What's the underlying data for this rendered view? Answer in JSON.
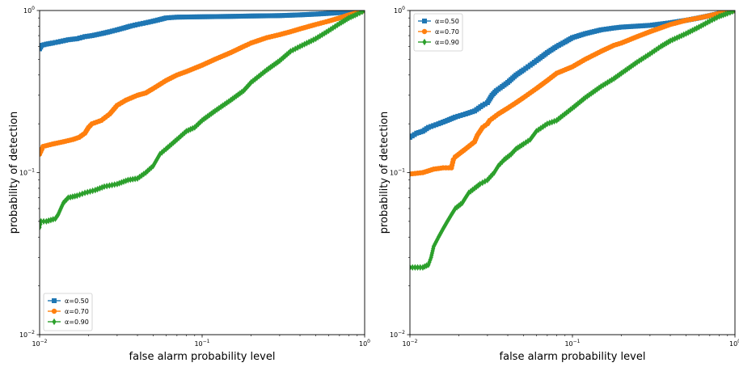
{
  "colors": {
    "blue": "#1f77b4",
    "orange": "#ff7f0e",
    "green": "#2ca02c"
  },
  "chart_data": [
    {
      "type": "line",
      "xscale": "log",
      "yscale": "log",
      "xlim": [
        0.01,
        1
      ],
      "ylim": [
        0.01,
        1
      ],
      "xlabel": "false alarm probability level",
      "ylabel": "probability of detection",
      "x_ticks": [
        0.01,
        0.1,
        1
      ],
      "y_ticks": [
        0.01,
        0.1,
        1
      ],
      "x_tick_labels": [
        [
          "10",
          "−2"
        ],
        [
          "10",
          "−1"
        ],
        [
          "10",
          "0"
        ]
      ],
      "y_tick_labels": [
        [
          "10",
          "−2"
        ],
        [
          "10",
          "−1"
        ],
        [
          "10",
          "0"
        ]
      ],
      "legend_position": "lower-left",
      "series": [
        {
          "name": "α=0.50",
          "marker": "square",
          "color": "#1f77b4",
          "points": [
            [
              0.01,
              0.58
            ],
            [
              0.0103,
              0.61
            ],
            [
              0.011,
              0.62
            ],
            [
              0.012,
              0.63
            ],
            [
              0.013,
              0.64
            ],
            [
              0.015,
              0.66
            ],
            [
              0.017,
              0.67
            ],
            [
              0.019,
              0.69
            ],
            [
              0.021,
              0.7
            ],
            [
              0.024,
              0.72
            ],
            [
              0.027,
              0.74
            ],
            [
              0.03,
              0.76
            ],
            [
              0.033,
              0.78
            ],
            [
              0.036,
              0.8
            ],
            [
              0.04,
              0.82
            ],
            [
              0.045,
              0.84
            ],
            [
              0.05,
              0.86
            ],
            [
              0.055,
              0.88
            ],
            [
              0.06,
              0.9
            ],
            [
              0.07,
              0.91
            ],
            [
              0.1,
              0.915
            ],
            [
              0.15,
              0.92
            ],
            [
              0.2,
              0.925
            ],
            [
              0.3,
              0.93
            ],
            [
              0.4,
              0.94
            ],
            [
              0.5,
              0.95
            ],
            [
              0.6,
              0.96
            ],
            [
              0.7,
              0.97
            ],
            [
              0.8,
              0.98
            ],
            [
              0.9,
              0.99
            ],
            [
              1.0,
              1.0
            ]
          ]
        },
        {
          "name": "α=0.70",
          "marker": "circle",
          "color": "#ff7f0e",
          "points": [
            [
              0.01,
              0.13
            ],
            [
              0.0105,
              0.145
            ],
            [
              0.012,
              0.15
            ],
            [
              0.014,
              0.155
            ],
            [
              0.016,
              0.16
            ],
            [
              0.0175,
              0.165
            ],
            [
              0.019,
              0.175
            ],
            [
              0.02,
              0.19
            ],
            [
              0.021,
              0.2
            ],
            [
              0.024,
              0.21
            ],
            [
              0.027,
              0.23
            ],
            [
              0.03,
              0.26
            ],
            [
              0.034,
              0.28
            ],
            [
              0.04,
              0.3
            ],
            [
              0.045,
              0.31
            ],
            [
              0.05,
              0.33
            ],
            [
              0.06,
              0.37
            ],
            [
              0.07,
              0.4
            ],
            [
              0.08,
              0.42
            ],
            [
              0.1,
              0.46
            ],
            [
              0.12,
              0.5
            ],
            [
              0.15,
              0.55
            ],
            [
              0.18,
              0.6
            ],
            [
              0.2,
              0.63
            ],
            [
              0.25,
              0.68
            ],
            [
              0.3,
              0.71
            ],
            [
              0.35,
              0.74
            ],
            [
              0.4,
              0.77
            ],
            [
              0.5,
              0.82
            ],
            [
              0.6,
              0.86
            ],
            [
              0.7,
              0.9
            ],
            [
              0.8,
              0.94
            ],
            [
              0.9,
              0.97
            ],
            [
              1.0,
              1.0
            ]
          ]
        },
        {
          "name": "α=0.90",
          "marker": "diamond",
          "color": "#2ca02c",
          "points": [
            [
              0.01,
              0.046
            ],
            [
              0.0102,
              0.05
            ],
            [
              0.011,
              0.05
            ],
            [
              0.0125,
              0.052
            ],
            [
              0.013,
              0.055
            ],
            [
              0.0135,
              0.06
            ],
            [
              0.014,
              0.065
            ],
            [
              0.015,
              0.07
            ],
            [
              0.017,
              0.072
            ],
            [
              0.019,
              0.075
            ],
            [
              0.022,
              0.078
            ],
            [
              0.025,
              0.082
            ],
            [
              0.03,
              0.085
            ],
            [
              0.035,
              0.09
            ],
            [
              0.04,
              0.092
            ],
            [
              0.045,
              0.1
            ],
            [
              0.05,
              0.11
            ],
            [
              0.055,
              0.13
            ],
            [
              0.06,
              0.14
            ],
            [
              0.07,
              0.16
            ],
            [
              0.08,
              0.18
            ],
            [
              0.09,
              0.19
            ],
            [
              0.1,
              0.21
            ],
            [
              0.12,
              0.24
            ],
            [
              0.15,
              0.28
            ],
            [
              0.18,
              0.32
            ],
            [
              0.2,
              0.36
            ],
            [
              0.25,
              0.43
            ],
            [
              0.3,
              0.49
            ],
            [
              0.35,
              0.56
            ],
            [
              0.4,
              0.6
            ],
            [
              0.5,
              0.67
            ],
            [
              0.6,
              0.75
            ],
            [
              0.7,
              0.83
            ],
            [
              0.8,
              0.9
            ],
            [
              0.9,
              0.95
            ],
            [
              1.0,
              1.0
            ]
          ]
        }
      ]
    },
    {
      "type": "line",
      "xscale": "log",
      "yscale": "log",
      "xlim": [
        0.01,
        1
      ],
      "ylim": [
        0.01,
        1
      ],
      "xlabel": "false alarm probability level",
      "ylabel": "probability of detection",
      "x_ticks": [
        0.01,
        0.1,
        1
      ],
      "y_ticks": [
        0.01,
        0.1,
        1
      ],
      "x_tick_labels": [
        [
          "10",
          "−2"
        ],
        [
          "10",
          "−1"
        ],
        [
          "10",
          "0"
        ]
      ],
      "y_tick_labels": [
        [
          "10",
          "−2"
        ],
        [
          "10",
          "−1"
        ],
        [
          "10",
          "0"
        ]
      ],
      "legend_position": "upper-left",
      "series": [
        {
          "name": "α=0.50",
          "marker": "square",
          "color": "#1f77b4",
          "points": [
            [
              0.01,
              0.165
            ],
            [
              0.011,
              0.175
            ],
            [
              0.012,
              0.18
            ],
            [
              0.013,
              0.19
            ],
            [
              0.015,
              0.2
            ],
            [
              0.017,
              0.21
            ],
            [
              0.019,
              0.22
            ],
            [
              0.022,
              0.23
            ],
            [
              0.025,
              0.24
            ],
            [
              0.028,
              0.26
            ],
            [
              0.03,
              0.27
            ],
            [
              0.032,
              0.3
            ],
            [
              0.034,
              0.32
            ],
            [
              0.037,
              0.34
            ],
            [
              0.04,
              0.36
            ],
            [
              0.045,
              0.4
            ],
            [
              0.05,
              0.43
            ],
            [
              0.055,
              0.46
            ],
            [
              0.06,
              0.49
            ],
            [
              0.065,
              0.52
            ],
            [
              0.07,
              0.55
            ],
            [
              0.08,
              0.6
            ],
            [
              0.09,
              0.64
            ],
            [
              0.1,
              0.68
            ],
            [
              0.12,
              0.72
            ],
            [
              0.15,
              0.76
            ],
            [
              0.18,
              0.78
            ],
            [
              0.2,
              0.79
            ],
            [
              0.3,
              0.81
            ],
            [
              0.4,
              0.84
            ],
            [
              0.5,
              0.87
            ],
            [
              0.6,
              0.9
            ],
            [
              0.7,
              0.93
            ],
            [
              0.8,
              0.96
            ],
            [
              0.9,
              0.98
            ],
            [
              1.0,
              1.0
            ]
          ]
        },
        {
          "name": "α=0.70",
          "marker": "circle",
          "color": "#ff7f0e",
          "points": [
            [
              0.01,
              0.098
            ],
            [
              0.012,
              0.1
            ],
            [
              0.014,
              0.105
            ],
            [
              0.016,
              0.107
            ],
            [
              0.018,
              0.107
            ],
            [
              0.0185,
              0.12
            ],
            [
              0.019,
              0.125
            ],
            [
              0.02,
              0.13
            ],
            [
              0.022,
              0.14
            ],
            [
              0.024,
              0.15
            ],
            [
              0.025,
              0.155
            ],
            [
              0.026,
              0.17
            ],
            [
              0.028,
              0.19
            ],
            [
              0.03,
              0.2
            ],
            [
              0.031,
              0.21
            ],
            [
              0.033,
              0.22
            ],
            [
              0.035,
              0.23
            ],
            [
              0.04,
              0.25
            ],
            [
              0.045,
              0.27
            ],
            [
              0.05,
              0.29
            ],
            [
              0.06,
              0.33
            ],
            [
              0.07,
              0.37
            ],
            [
              0.08,
              0.41
            ],
            [
              0.1,
              0.45
            ],
            [
              0.12,
              0.5
            ],
            [
              0.15,
              0.56
            ],
            [
              0.18,
              0.61
            ],
            [
              0.2,
              0.63
            ],
            [
              0.25,
              0.69
            ],
            [
              0.3,
              0.74
            ],
            [
              0.4,
              0.82
            ],
            [
              0.5,
              0.87
            ],
            [
              0.6,
              0.9
            ],
            [
              0.7,
              0.93
            ],
            [
              0.8,
              0.96
            ],
            [
              0.9,
              0.98
            ],
            [
              1.0,
              1.0
            ]
          ]
        },
        {
          "name": "α=0.90",
          "marker": "diamond",
          "color": "#2ca02c",
          "points": [
            [
              0.01,
              0.026
            ],
            [
              0.012,
              0.026
            ],
            [
              0.013,
              0.027
            ],
            [
              0.0135,
              0.03
            ],
            [
              0.014,
              0.035
            ],
            [
              0.015,
              0.04
            ],
            [
              0.016,
              0.045
            ],
            [
              0.017,
              0.05
            ],
            [
              0.018,
              0.055
            ],
            [
              0.019,
              0.06
            ],
            [
              0.021,
              0.065
            ],
            [
              0.022,
              0.07
            ],
            [
              0.023,
              0.075
            ],
            [
              0.025,
              0.08
            ],
            [
              0.027,
              0.085
            ],
            [
              0.03,
              0.09
            ],
            [
              0.033,
              0.1
            ],
            [
              0.035,
              0.11
            ],
            [
              0.038,
              0.12
            ],
            [
              0.042,
              0.13
            ],
            [
              0.045,
              0.14
            ],
            [
              0.05,
              0.15
            ],
            [
              0.055,
              0.16
            ],
            [
              0.06,
              0.18
            ],
            [
              0.07,
              0.2
            ],
            [
              0.08,
              0.21
            ],
            [
              0.1,
              0.25
            ],
            [
              0.12,
              0.29
            ],
            [
              0.15,
              0.34
            ],
            [
              0.18,
              0.38
            ],
            [
              0.2,
              0.41
            ],
            [
              0.25,
              0.48
            ],
            [
              0.3,
              0.54
            ],
            [
              0.35,
              0.6
            ],
            [
              0.4,
              0.65
            ],
            [
              0.5,
              0.72
            ],
            [
              0.6,
              0.79
            ],
            [
              0.7,
              0.86
            ],
            [
              0.8,
              0.92
            ],
            [
              0.9,
              0.96
            ],
            [
              1.0,
              1.0
            ]
          ]
        }
      ]
    }
  ]
}
